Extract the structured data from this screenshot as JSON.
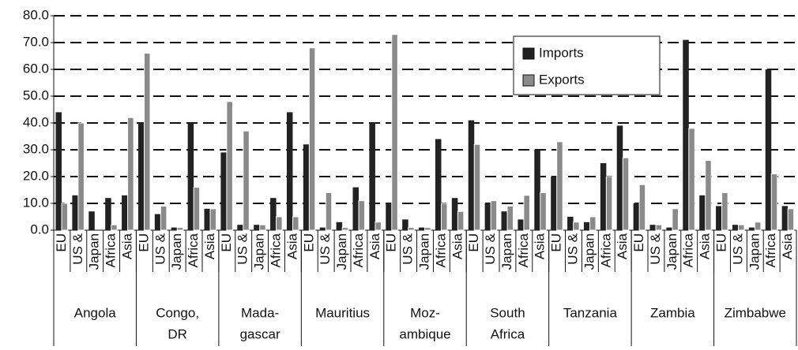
{
  "chart_data": {
    "type": "bar",
    "groups": [
      {
        "label": [
          "Angola"
        ],
        "categories": [
          "EU",
          "US &",
          "Japan",
          "Africa",
          "Asia"
        ]
      },
      {
        "label": [
          "Congo,",
          "DR"
        ],
        "categories": [
          "EU",
          "US &",
          "Japan",
          "Africa",
          "Asia"
        ]
      },
      {
        "label": [
          "Mada-",
          "gascar"
        ],
        "categories": [
          "EU",
          "US &",
          "Japan",
          "Africa",
          "Asia"
        ]
      },
      {
        "label": [
          "Mauritius"
        ],
        "categories": [
          "EU",
          "US &",
          "Japan",
          "Africa",
          "Asia"
        ]
      },
      {
        "label": [
          "Moz-",
          "ambique"
        ],
        "categories": [
          "EU",
          "US &",
          "Japan",
          "Africa",
          "Asia"
        ]
      },
      {
        "label": [
          "South",
          "Africa"
        ],
        "categories": [
          "EU",
          "US &",
          "Japan",
          "Africa",
          "Asia"
        ]
      },
      {
        "label": [
          "Tanzania"
        ],
        "categories": [
          "EU",
          "US &",
          "Japan",
          "Africa",
          "Asia"
        ]
      },
      {
        "label": [
          "Zambia"
        ],
        "categories": [
          "EU",
          "US &",
          "Japan",
          "Africa",
          "Asia"
        ]
      },
      {
        "label": [
          "Zimbabwe"
        ],
        "categories": [
          "EU",
          "US &",
          "Japan",
          "Africa",
          "Asia"
        ]
      }
    ],
    "series": [
      {
        "name": "Imports",
        "color": "#222222",
        "values": [
          44,
          13,
          7,
          12,
          13,
          40,
          6,
          1,
          40,
          8,
          29,
          2,
          2,
          12,
          44,
          32,
          1,
          3,
          16,
          40,
          10,
          4,
          1,
          34,
          12,
          41,
          10,
          7,
          4,
          30,
          20,
          5,
          3,
          25,
          39,
          10,
          2,
          1,
          71,
          13,
          9,
          2,
          1,
          60,
          9
        ]
      },
      {
        "name": "Exports",
        "color": "#8a8a8a",
        "values": [
          10,
          40,
          0,
          2,
          42,
          66,
          9,
          1,
          16,
          8,
          48,
          37,
          2,
          5,
          5,
          68,
          14,
          1,
          11,
          3,
          73,
          1,
          1,
          10,
          7,
          32,
          11,
          9,
          13,
          14,
          33,
          3,
          5,
          20,
          27,
          17,
          2,
          8,
          38,
          26,
          14,
          2,
          3,
          21,
          8
        ]
      }
    ],
    "ylim": [
      0,
      80
    ],
    "yticks": [
      {
        "value": 0,
        "label": "0.0"
      },
      {
        "value": 10,
        "label": "10.0"
      },
      {
        "value": 20,
        "label": "20.0"
      },
      {
        "value": 30,
        "label": "30.0"
      },
      {
        "value": 40,
        "label": "40.0"
      },
      {
        "value": 50,
        "label": "50.0"
      },
      {
        "value": 60,
        "label": "60.0"
      },
      {
        "value": 70,
        "label": "70.0"
      },
      {
        "value": 80,
        "label": "80.0"
      }
    ],
    "grid": true
  }
}
